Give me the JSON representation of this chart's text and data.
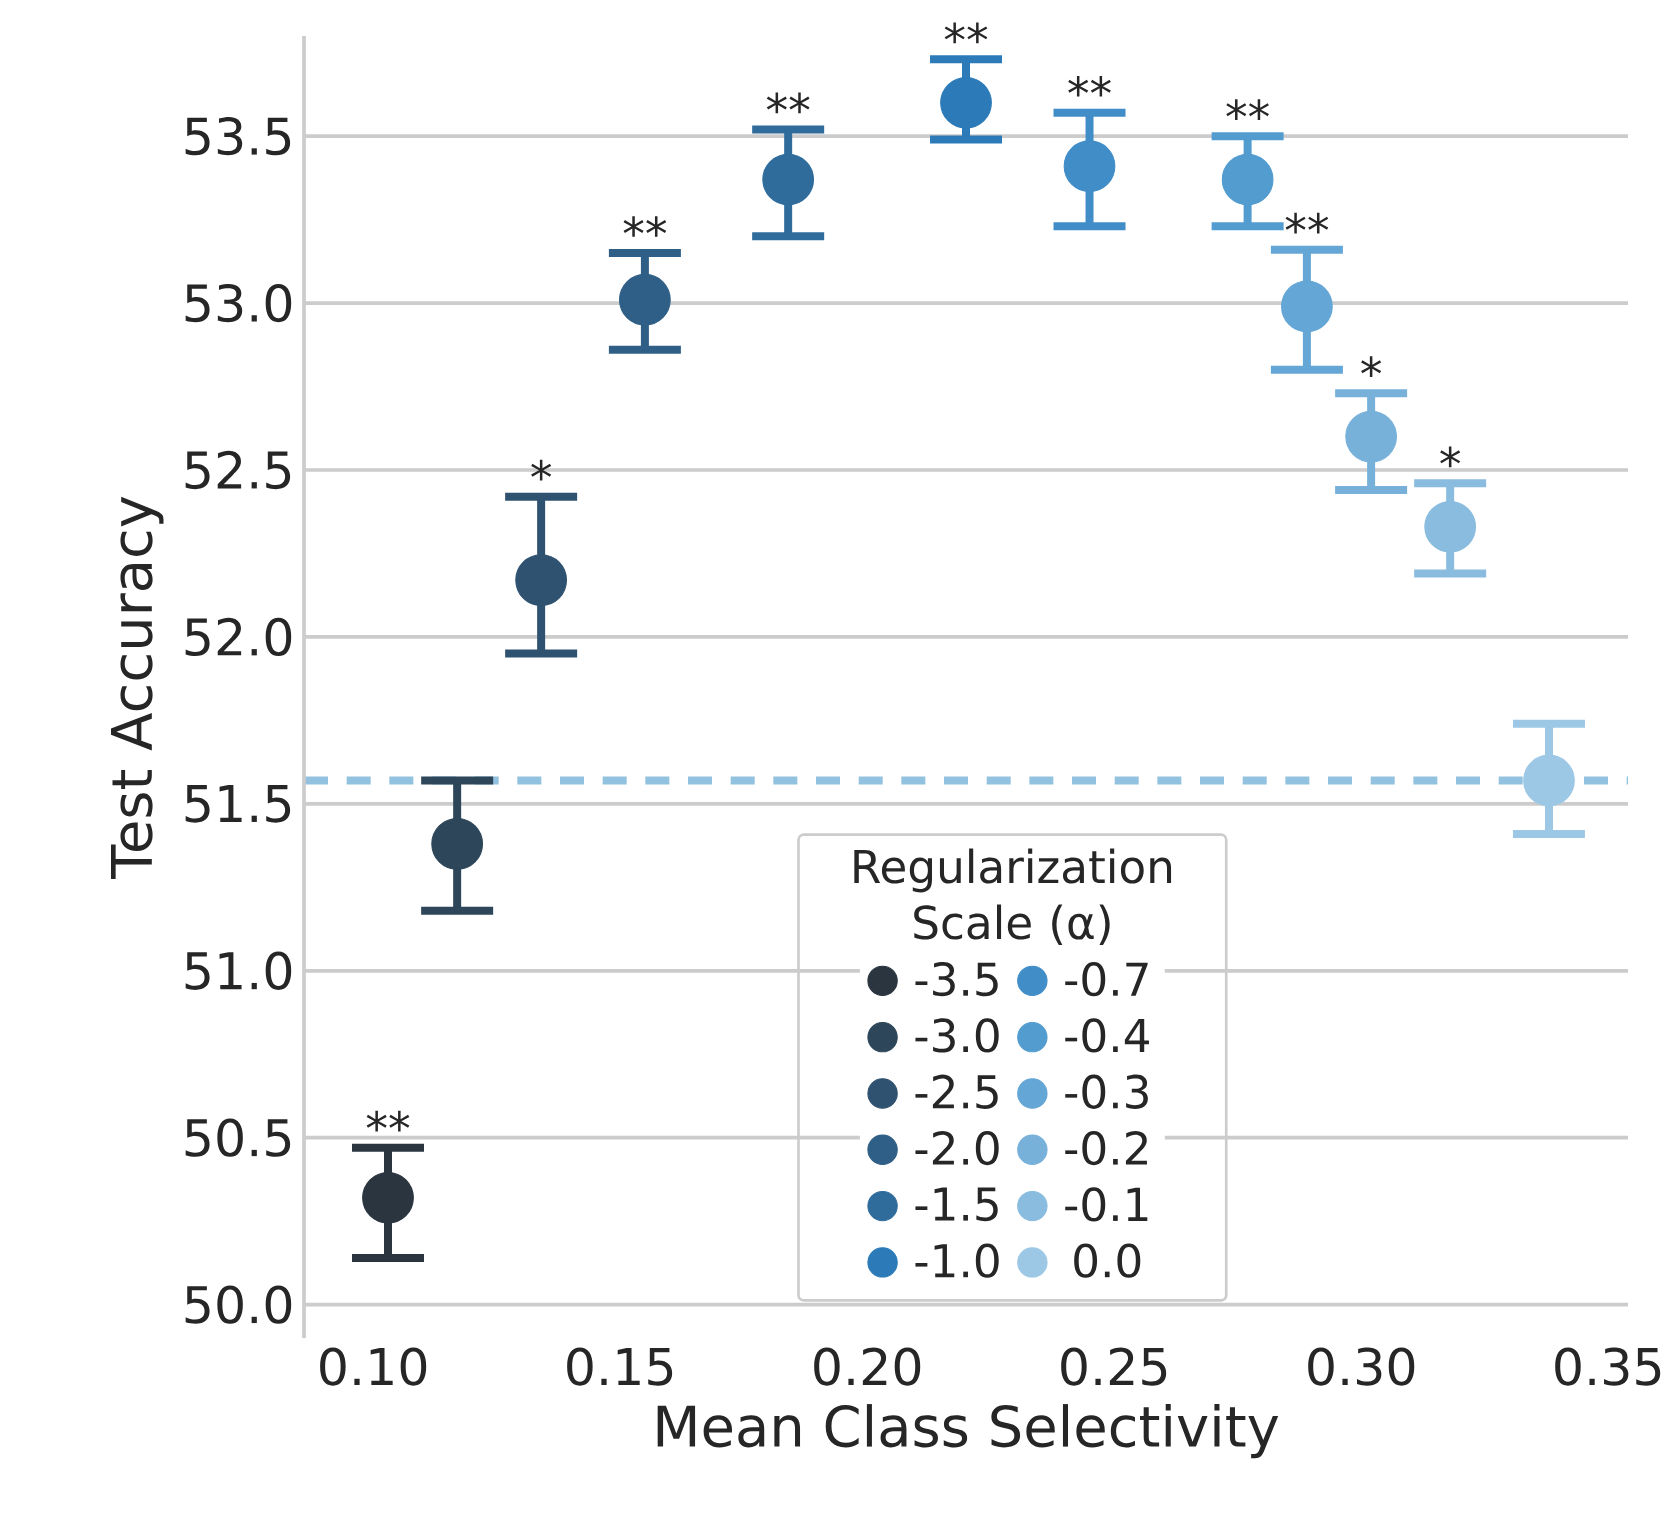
{
  "chart_data": {
    "type": "scatter",
    "xlabel": "Mean Class Selectivity",
    "ylabel": "Test Accuracy",
    "legend_title": "Regularization Scale (α)",
    "xlim": [
      0.086,
      0.354
    ],
    "ylim": [
      49.9,
      53.8
    ],
    "xticks": [
      {
        "value": 0.1,
        "label": "0.10"
      },
      0.15,
      {
        "value": 0.2,
        "label": "0.20"
      },
      0.25,
      {
        "value": 0.3,
        "label": "0.30"
      },
      0.35
    ],
    "yticks": [
      {
        "value": 50,
        "label": "50.0"
      },
      50.5,
      {
        "value": 51,
        "label": "51.0"
      },
      51.5,
      {
        "value": 52,
        "label": "52.0"
      },
      52.5,
      {
        "value": 53,
        "label": "53.0"
      },
      53.5
    ],
    "grid": "y",
    "legend": "bottom",
    "marker": "circle",
    "series": [
      {
        "name": "-3.5",
        "color": "#2a3540",
        "x": [
          0.103
        ],
        "values": [
          50.32
        ],
        "errors": [
          [
            50.14,
            50.47
          ]
        ]
      },
      {
        "name": "-3.0",
        "color": "#2d4659",
        "x": [
          0.117
        ],
        "values": [
          51.38
        ],
        "errors": [
          [
            51.18,
            51.57
          ]
        ]
      },
      {
        "name": "-2.5",
        "color": "#2f5270",
        "x": [
          0.134
        ],
        "values": [
          52.17
        ],
        "errors": [
          [
            51.95,
            52.42
          ]
        ]
      },
      {
        "name": "-2.0",
        "color": "#2f5f86",
        "x": [
          0.155
        ],
        "values": [
          53.01
        ],
        "errors": [
          [
            52.86,
            53.15
          ]
        ]
      },
      {
        "name": "-1.5",
        "color": "#2f6c9c",
        "x": [
          0.184
        ],
        "values": [
          53.37
        ],
        "errors": [
          [
            53.2,
            53.52
          ]
        ]
      },
      {
        "name": "-1.0",
        "color": "#2c7bb8",
        "x": [
          0.22
        ],
        "values": [
          53.6
        ],
        "errors": [
          [
            53.49,
            53.73
          ]
        ]
      },
      {
        "name": "-0.7",
        "color": "#418dc8",
        "x": [
          0.245
        ],
        "values": [
          53.41
        ],
        "errors": [
          [
            53.23,
            53.57
          ]
        ]
      },
      {
        "name": "-0.4",
        "color": "#529ccf",
        "x": [
          0.277
        ],
        "values": [
          53.37
        ],
        "errors": [
          [
            53.23,
            53.5
          ]
        ]
      },
      {
        "name": "-0.3",
        "color": "#64a6d5",
        "x": [
          0.289
        ],
        "values": [
          52.99
        ],
        "errors": [
          [
            52.8,
            53.16
          ]
        ]
      },
      {
        "name": "-0.2",
        "color": "#77b1da",
        "x": [
          0.302
        ],
        "values": [
          52.6
        ],
        "errors": [
          [
            52.44,
            52.73
          ]
        ]
      },
      {
        "name": "-0.1",
        "color": "#89bcdf",
        "x": [
          0.318
        ],
        "values": [
          52.33
        ],
        "errors": [
          [
            52.19,
            52.46
          ]
        ]
      },
      {
        "name": "0.0",
        "color": "#9cc8e6",
        "x": [
          0.338
        ],
        "values": [
          51.57
        ],
        "errors": [
          [
            51.41,
            51.74
          ]
        ]
      }
    ],
    "ref_lines": [
      {
        "axis": "y",
        "value": 51.57,
        "color": "#93c2e0",
        "line_style": "dashed"
      }
    ],
    "annotations": [
      {
        "text": "**",
        "x": 0.103,
        "y": 50.47
      },
      {
        "text": "*",
        "x": 0.134,
        "y": 52.42
      },
      {
        "text": "**",
        "x": 0.155,
        "y": 53.15
      },
      {
        "text": "**",
        "x": 0.184,
        "y": 53.52
      },
      {
        "text": "**",
        "x": 0.22,
        "y": 53.73
      },
      {
        "text": "**",
        "x": 0.245,
        "y": 53.57
      },
      {
        "text": "**",
        "x": 0.277,
        "y": 53.5
      },
      {
        "text": "**",
        "x": 0.289,
        "y": 53.16
      },
      {
        "text": "*",
        "x": 0.302,
        "y": 52.73
      },
      {
        "text": "*",
        "x": 0.318,
        "y": 52.46
      }
    ]
  }
}
